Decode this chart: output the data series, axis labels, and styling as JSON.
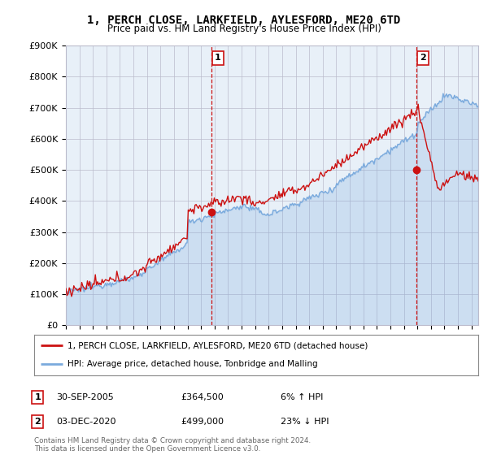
{
  "title": "1, PERCH CLOSE, LARKFIELD, AYLESFORD, ME20 6TD",
  "subtitle": "Price paid vs. HM Land Registry's House Price Index (HPI)",
  "ylabel_ticks": [
    "£0",
    "£100K",
    "£200K",
    "£300K",
    "£400K",
    "£500K",
    "£600K",
    "£700K",
    "£800K",
    "£900K"
  ],
  "ylim": [
    0,
    900000
  ],
  "xlim_start": 1995.0,
  "xlim_end": 2025.5,
  "hpi_color": "#7aaadd",
  "price_color": "#cc1111",
  "chart_bg": "#e8f0f8",
  "marker1_date": 2005.75,
  "marker1_price": 364500,
  "marker2_date": 2020.92,
  "marker2_price": 499000,
  "legend_line1": "1, PERCH CLOSE, LARKFIELD, AYLESFORD, ME20 6TD (detached house)",
  "legend_line2": "HPI: Average price, detached house, Tonbridge and Malling",
  "annotation1_label": "1",
  "annotation1_date": "30-SEP-2005",
  "annotation1_price": "£364,500",
  "annotation1_hpi": "6% ↑ HPI",
  "annotation2_label": "2",
  "annotation2_date": "03-DEC-2020",
  "annotation2_price": "£499,000",
  "annotation2_hpi": "23% ↓ HPI",
  "footer": "Contains HM Land Registry data © Crown copyright and database right 2024.\nThis data is licensed under the Open Government Licence v3.0.",
  "background_color": "#ffffff",
  "grid_color": "#bbbbcc"
}
